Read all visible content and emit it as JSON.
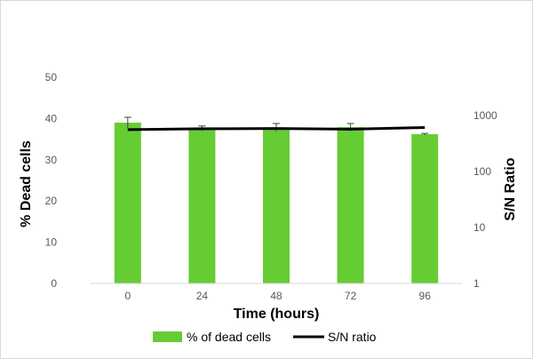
{
  "chart_data": {
    "type": "bar",
    "categories": [
      "0",
      "24",
      "48",
      "72",
      "96"
    ],
    "series": [
      {
        "name": "% of dead cells",
        "type": "bar",
        "axis": "left",
        "values": [
          39.0,
          37.6,
          37.8,
          37.9,
          36.2
        ],
        "error": [
          1.3,
          0.6,
          1.0,
          0.9,
          0.2
        ],
        "color": "#66cc33"
      },
      {
        "name": "S/N ratio",
        "type": "line",
        "axis": "right",
        "values": [
          560,
          580,
          585,
          570,
          610
        ],
        "color": "#000000"
      }
    ],
    "xlabel": "Time (hours)",
    "ylabel": "% Dead cells",
    "y2label": "S/N Ratio",
    "ylim": [
      0,
      50
    ],
    "yticks": [
      "0",
      "10",
      "20",
      "30",
      "40",
      "50"
    ],
    "y2lim": [
      1,
      1000
    ],
    "y2scale": "log",
    "y2ticks": [
      "1",
      "10",
      "100",
      "1000"
    ],
    "grid": false,
    "legend": "bottom"
  }
}
